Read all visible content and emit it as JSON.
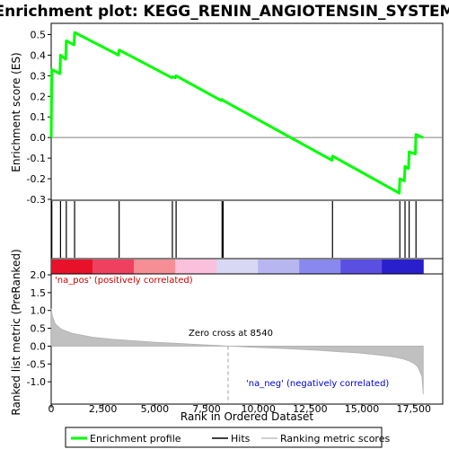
{
  "chart_data": [
    {
      "type": "line",
      "title": "Enrichment plot: KEGG_RENIN_ANGIOTENSIN_SYSTEM",
      "ylabel": "Enrichment score (ES)",
      "xlim": [
        0,
        18900
      ],
      "ylim": [
        -0.3,
        0.55
      ],
      "yticks": [
        "-0.3",
        "-0.2",
        "-0.1",
        "0.0",
        "0.1",
        "0.2",
        "0.3",
        "0.4",
        "0.5"
      ],
      "grid": false,
      "series": [
        {
          "name": "Enrichment profile",
          "color": "#00ff00",
          "points": [
            [
              0,
              0.0
            ],
            [
              30,
              0.33
            ],
            [
              420,
              0.31
            ],
            [
              450,
              0.4
            ],
            [
              700,
              0.38
            ],
            [
              730,
              0.47
            ],
            [
              1100,
              0.45
            ],
            [
              1130,
              0.51
            ],
            [
              3250,
              0.4
            ],
            [
              3280,
              0.425
            ],
            [
              5820,
              0.29
            ],
            [
              5850,
              0.295
            ],
            [
              6000,
              0.29
            ],
            [
              6030,
              0.3
            ],
            [
              8200,
              0.18
            ],
            [
              8250,
              0.185
            ],
            [
              8300,
              0.18
            ],
            [
              13550,
              -0.11
            ],
            [
              13580,
              -0.09
            ],
            [
              16800,
              -0.27
            ],
            [
              16830,
              -0.2
            ],
            [
              17050,
              -0.21
            ],
            [
              17080,
              -0.14
            ],
            [
              17250,
              -0.15
            ],
            [
              17280,
              -0.07
            ],
            [
              17580,
              -0.08
            ],
            [
              17610,
              0.015
            ],
            [
              17950,
              0.0
            ]
          ]
        }
      ]
    },
    {
      "type": "hits",
      "series": [
        {
          "name": "Hits",
          "x": [
            30,
            450,
            730,
            1130,
            3280,
            5850,
            6030,
            8250,
            8300,
            13580,
            16830,
            17080,
            17280,
            17610
          ]
        }
      ]
    },
    {
      "type": "area",
      "xlabel": "Rank in Ordered Dataset",
      "ylabel": "Ranked list metric (PreRanked)",
      "xlim": [
        0,
        18900
      ],
      "ylim": [
        -1.6,
        2.0
      ],
      "xticks": [
        "0",
        "2,500",
        "5,000",
        "7,500",
        "10,000",
        "12,500",
        "15,000",
        "17,500"
      ],
      "yticks": [
        "-1.0",
        "-0.5",
        "0.0",
        "0.5",
        "1.0",
        "1.5",
        "2.0"
      ],
      "series": [
        {
          "name": "Ranking metric scores",
          "x": [
            0,
            50,
            200,
            500,
            1000,
            2000,
            3000,
            4000,
            5000,
            6000,
            7000,
            8000,
            8540,
            9000,
            10000,
            11000,
            12000,
            13000,
            14000,
            15000,
            16000,
            16500,
            17000,
            17300,
            17500,
            17700,
            17900,
            17960
          ],
          "values": [
            1.05,
            0.85,
            0.62,
            0.47,
            0.36,
            0.25,
            0.19,
            0.15,
            0.11,
            0.08,
            0.05,
            0.02,
            0.0,
            -0.01,
            -0.04,
            -0.06,
            -0.09,
            -0.12,
            -0.16,
            -0.2,
            -0.26,
            -0.3,
            -0.36,
            -0.42,
            -0.48,
            -0.58,
            -0.85,
            -1.35
          ]
        }
      ],
      "annotations": {
        "pos": "'na_pos' (positively correlated)",
        "zero": "Zero cross at 8540",
        "neg": "'na_neg' (negatively correlated)"
      },
      "zero_cross": 8540,
      "heatbar_colors": [
        "#e8112a",
        "#f04060",
        "#f68f95",
        "#fac0dc",
        "#d8d8f4",
        "#b8b6f0",
        "#8888ee",
        "#5a4fe0",
        "#2a1fcc"
      ]
    }
  ],
  "legend": {
    "items": [
      {
        "label": "Enrichment profile",
        "color": "#00ff00"
      },
      {
        "label": "Hits",
        "color": "#000000"
      },
      {
        "label": "Ranking metric scores",
        "color": "#c0c0c0"
      }
    ]
  }
}
